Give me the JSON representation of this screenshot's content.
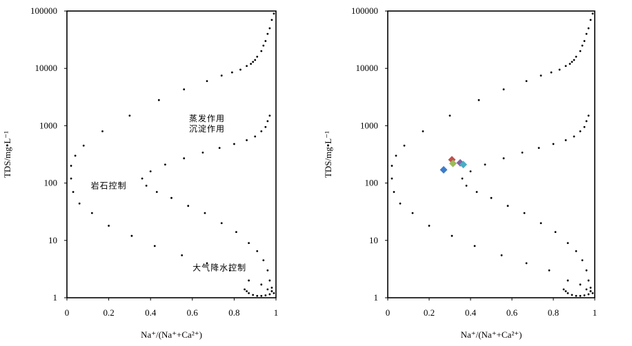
{
  "chart_data": [
    {
      "type": "scatter",
      "xlabel": "Na⁺/(Na⁺+Ca²⁺)",
      "ylabel": "TDS/mg•L⁻¹",
      "xlim": [
        0,
        1
      ],
      "ylim": [
        1,
        100000
      ],
      "yscale": "log",
      "xticks": [
        "0",
        "0.2",
        "0.4",
        "0.6",
        "0.8",
        "1"
      ],
      "yticks": [
        "1",
        "10",
        "100",
        "1000",
        "10000",
        "100000"
      ],
      "annotations": [
        {
          "text": "蒸发作用",
          "x": 0.67,
          "y": 1200
        },
        {
          "text": "沉淀作用",
          "x": 0.67,
          "y": 790
        },
        {
          "text": "岩石控制",
          "x": 0.2,
          "y": 80
        },
        {
          "text": "大气降水控制",
          "x": 0.73,
          "y": 3.0
        }
      ],
      "envelope_outer": {
        "x": [
          0.99,
          0.98,
          0.97,
          0.96,
          0.95,
          0.94,
          0.93,
          0.91,
          0.9,
          0.89,
          0.88,
          0.86,
          0.83,
          0.79,
          0.74,
          0.67,
          0.56,
          0.44,
          0.3,
          0.17,
          0.08,
          0.04,
          0.02,
          0.02,
          0.03,
          0.06,
          0.12,
          0.2,
          0.31,
          0.42,
          0.55,
          0.67,
          0.78,
          0.87,
          0.93,
          0.96,
          0.98,
          0.99
        ],
        "y": [
          90000,
          70000,
          50000,
          40000,
          30000,
          25000,
          20000,
          16000,
          14000,
          13000,
          12000,
          11000,
          9500,
          8500,
          7500,
          6000,
          4300,
          2800,
          1500,
          800,
          450,
          300,
          200,
          120,
          70,
          44,
          30,
          18,
          12,
          8,
          5.5,
          4,
          3,
          2,
          1.7,
          1.4,
          1.3,
          1.2
        ]
      },
      "envelope_inner": {
        "x": [
          0.97,
          0.96,
          0.95,
          0.93,
          0.9,
          0.86,
          0.8,
          0.73,
          0.65,
          0.56,
          0.47,
          0.4,
          0.36,
          0.38,
          0.43,
          0.5,
          0.58,
          0.66,
          0.74,
          0.81,
          0.87,
          0.91,
          0.94,
          0.96,
          0.97,
          0.98,
          0.98,
          0.97,
          0.95,
          0.93,
          0.91,
          0.89,
          0.87,
          0.86,
          0.85
        ],
        "y": [
          1500,
          1200,
          950,
          800,
          650,
          560,
          480,
          410,
          340,
          270,
          210,
          160,
          120,
          90,
          70,
          55,
          40,
          30,
          20,
          14,
          9,
          6.5,
          4.5,
          3,
          2,
          1.5,
          1.3,
          1.15,
          1.1,
          1.08,
          1.08,
          1.12,
          1.2,
          1.3,
          1.4
        ]
      },
      "series": []
    },
    {
      "type": "scatter",
      "xlabel": "Na⁺/(Na⁺+Ca²⁺)",
      "ylabel": "TDS/mg•L⁻¹",
      "xlim": [
        0,
        1
      ],
      "ylim": [
        1,
        100000
      ],
      "yscale": "log",
      "xticks": [
        "0",
        "0.2",
        "0.4",
        "0.6",
        "0.8",
        "1"
      ],
      "yticks": [
        "1",
        "10",
        "100",
        "1000",
        "10000",
        "100000"
      ],
      "envelope_outer": {
        "x": [
          0.99,
          0.98,
          0.97,
          0.96,
          0.95,
          0.94,
          0.93,
          0.91,
          0.9,
          0.89,
          0.88,
          0.86,
          0.83,
          0.79,
          0.74,
          0.67,
          0.56,
          0.44,
          0.3,
          0.17,
          0.08,
          0.04,
          0.02,
          0.02,
          0.03,
          0.06,
          0.12,
          0.2,
          0.31,
          0.42,
          0.55,
          0.67,
          0.78,
          0.87,
          0.93,
          0.96,
          0.98,
          0.99
        ],
        "y": [
          90000,
          70000,
          50000,
          40000,
          30000,
          25000,
          20000,
          16000,
          14000,
          13000,
          12000,
          11000,
          9500,
          8500,
          7500,
          6000,
          4300,
          2800,
          1500,
          800,
          450,
          300,
          200,
          120,
          70,
          44,
          30,
          18,
          12,
          8,
          5.5,
          4,
          3,
          2,
          1.7,
          1.4,
          1.3,
          1.2
        ]
      },
      "envelope_inner": {
        "x": [
          0.97,
          0.96,
          0.95,
          0.93,
          0.9,
          0.86,
          0.8,
          0.73,
          0.65,
          0.56,
          0.47,
          0.4,
          0.36,
          0.38,
          0.43,
          0.5,
          0.58,
          0.66,
          0.74,
          0.81,
          0.87,
          0.91,
          0.94,
          0.96,
          0.97,
          0.98,
          0.98,
          0.97,
          0.95,
          0.93,
          0.91,
          0.89,
          0.87,
          0.86,
          0.85
        ],
        "y": [
          1500,
          1200,
          950,
          800,
          650,
          560,
          480,
          410,
          340,
          270,
          210,
          160,
          120,
          90,
          70,
          55,
          40,
          30,
          20,
          14,
          9,
          6.5,
          4.5,
          3,
          2,
          1.5,
          1.3,
          1.15,
          1.1,
          1.08,
          1.08,
          1.12,
          1.2,
          1.3,
          1.4
        ]
      },
      "series": [
        {
          "color": "#3d7cc9",
          "points": [
            {
              "x": 0.27,
              "y": 170
            }
          ]
        },
        {
          "color": "#c0504d",
          "points": [
            {
              "x": 0.31,
              "y": 255
            }
          ]
        },
        {
          "color": "#9bbb59",
          "points": [
            {
              "x": 0.315,
              "y": 220
            }
          ]
        },
        {
          "color": "#8064a2",
          "points": [
            {
              "x": 0.35,
              "y": 225
            }
          ]
        },
        {
          "color": "#4bacc6",
          "points": [
            {
              "x": 0.365,
              "y": 210
            }
          ]
        }
      ]
    }
  ]
}
